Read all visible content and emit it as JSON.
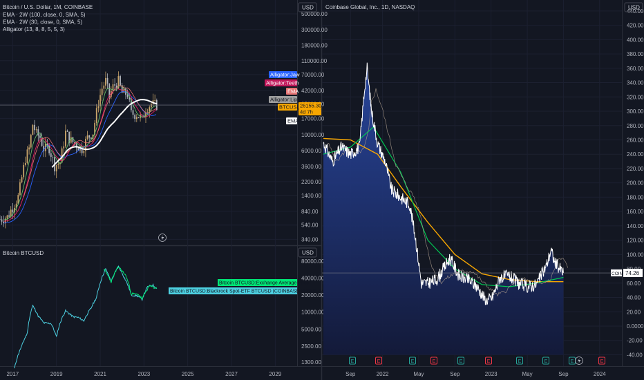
{
  "colors": {
    "bg": "#131722",
    "grid": "#1c2030",
    "axis_text": "#b2b5be",
    "btc_candle_up": "#c8a46a",
    "btc_candle_down": "#b0b4bc",
    "jaw": "#2962ff",
    "teeth": "#e91e63",
    "lips": "#66bb6a",
    "ema": "#ffffff",
    "btc_price": "#f7a600",
    "coin_price": "#ffffff",
    "coin_ema_orange": "#f7a600",
    "coin_ema_green": "#00c853",
    "coin_fill": "#1a2b66",
    "exchange_avg": "#00e676",
    "etf": "#4dd0e1",
    "earnings": "#26a69a",
    "dividend_e": "#f23645"
  },
  "left_top": {
    "title": "Bitcoin / U.S. Dollar, 1M, COINBASE",
    "studies": [
      "EMA · 2W (100, close, 0, SMA, 5)",
      "EMA · 2W (30, close, 0, SMA, 5)",
      "Alligator (13, 8, 8, 5, 5, 3)"
    ],
    "currency": "USD",
    "y_ticks": [
      "500000.00",
      "300000.00",
      "180000.00",
      "110000.00",
      "70000.00",
      "42000.00",
      "27000.00",
      "17000.00",
      "10000.00",
      "6000.00",
      "3600.00",
      "2200.00",
      "1400.00",
      "840.00",
      "540.00",
      "340.00"
    ],
    "labels": {
      "jaw": "Alligator:Jaw",
      "teeth": "Alligator:Teeth",
      "ema1": "EMA",
      "lips": "Alligator:Lips",
      "btc": "BTCUSD",
      "btc_price": "26155.30",
      "btc_sub": "4d 7h",
      "ema2": "EMA"
    }
  },
  "left_bottom": {
    "title": "Bitcoin BTCUSD",
    "currency": "USD",
    "y_ticks": [
      "80000.00",
      "40000.00",
      "20000.00",
      "10000.00",
      "5000.00",
      "2500.00",
      "1300.00"
    ],
    "legend_exchange": "Bitcoin BTCUSD:Exchange Average Price",
    "legend_etf": "Bitcoin BTCUSD:Blackrock Spot-ETF BTCUSD (COINBASE PREMIUM)"
  },
  "left_x_ticks": [
    "2017",
    "2019",
    "2021",
    "2023",
    "2025",
    "2027",
    "2029"
  ],
  "right": {
    "title": "Coinbase Global, Inc., 1D, NASDAQ",
    "currency": "USD",
    "y_ticks": [
      "440.00",
      "420.00",
      "400.00",
      "380.00",
      "360.00",
      "340.00",
      "320.00",
      "300.00",
      "280.00",
      "260.00",
      "240.00",
      "220.00",
      "200.00",
      "180.00",
      "160.00",
      "140.00",
      "120.00",
      "100.00",
      "80.00",
      "60.00",
      "40.00",
      "20.00",
      "0.0000",
      "-20.00",
      "-40.00"
    ],
    "x_ticks": [
      "Sep",
      "2022",
      "May",
      "Sep",
      "2023",
      "May",
      "Sep",
      "2024"
    ],
    "coin_label": "COIN",
    "coin_price": "74.26",
    "events": [
      "E",
      "E",
      "E",
      "E",
      "E",
      "E",
      "E",
      "E",
      "E",
      "E"
    ]
  },
  "chart_data": [
    {
      "type": "candlestick",
      "title": "Bitcoin / U.S. Dollar, 1M, COINBASE",
      "y_scale": "log",
      "ylim": [
        300,
        500000
      ],
      "xlim": [
        "2016-06",
        "2030-01"
      ],
      "current_price": 26155.3,
      "close_series": {
        "dates": [
          "2016-06",
          "2016-10",
          "2017-01",
          "2017-04",
          "2017-06",
          "2017-08",
          "2017-10",
          "2017-12",
          "2018-02",
          "2018-04",
          "2018-06",
          "2018-09",
          "2018-12",
          "2019-03",
          "2019-06",
          "2019-09",
          "2019-12",
          "2020-03",
          "2020-06",
          "2020-09",
          "2020-12",
          "2021-02",
          "2021-04",
          "2021-06",
          "2021-08",
          "2021-11",
          "2022-01",
          "2022-04",
          "2022-06",
          "2022-09",
          "2022-12",
          "2023-02",
          "2023-05",
          "2023-08"
        ],
        "values": [
          650,
          700,
          970,
          1350,
          2500,
          4700,
          6400,
          14000,
          10300,
          9200,
          6400,
          6600,
          3700,
          4100,
          10800,
          8300,
          7200,
          6400,
          9100,
          10800,
          29000,
          45000,
          57000,
          35000,
          47000,
          57000,
          38500,
          37600,
          19900,
          19400,
          16500,
          23100,
          27200,
          26155
        ]
      },
      "alligator_jaw_level_now": 27500,
      "ema_level_now": 27100
    },
    {
      "type": "line",
      "title": "Bitcoin BTCUSD",
      "y_scale": "log",
      "ylim": [
        1100,
        100000
      ],
      "series": [
        {
          "name": "Bitcoin BTCUSD:Exchange Average Price",
          "x": [
            "2017-02",
            "2017-06",
            "2017-09",
            "2017-12",
            "2018-03",
            "2018-06",
            "2018-10",
            "2019-01",
            "2019-06",
            "2019-10",
            "2020-01",
            "2020-04",
            "2020-08",
            "2020-11",
            "2021-01",
            "2021-04",
            "2021-07",
            "2021-11",
            "2022-02",
            "2022-06",
            "2022-09",
            "2022-12",
            "2023-03",
            "2023-06",
            "2023-08"
          ],
          "y": [
            1000,
            2500,
            4200,
            13000,
            8500,
            6400,
            6300,
            3600,
            10500,
            8300,
            8000,
            7000,
            11700,
            18000,
            33000,
            58000,
            34000,
            64000,
            42000,
            20000,
            19500,
            16800,
            28000,
            30000,
            26000
          ]
        },
        {
          "name": "Bitcoin BTCUSD:Blackrock Spot-ETF BTCUSD (COINBASE PREMIUM)",
          "x": [
            "2021-03",
            "2021-07",
            "2021-11",
            "2022-03",
            "2022-06",
            "2022-10",
            "2022-12",
            "2023-04",
            "2023-08"
          ],
          "y": [
            57000,
            34500,
            63000,
            44000,
            21000,
            20500,
            16800,
            29000,
            26200
          ]
        }
      ]
    },
    {
      "type": "area",
      "title": "Coinbase Global, Inc., 1D, NASDAQ",
      "ylim": [
        -40,
        450
      ],
      "xlim": [
        "2021-06-15",
        "2024-03-15"
      ],
      "series": [
        {
          "name": "COIN",
          "x": [
            "2021-06-15",
            "2021-07-15",
            "2021-08-15",
            "2021-09-15",
            "2021-10-15",
            "2021-11-01",
            "2021-11-10",
            "2021-11-25",
            "2021-12-15",
            "2022-01-10",
            "2022-02-01",
            "2022-03-01",
            "2022-04-01",
            "2022-04-20",
            "2022-05-10",
            "2022-06-01",
            "2022-07-01",
            "2022-08-15",
            "2022-09-15",
            "2022-10-15",
            "2022-11-15",
            "2022-12-15",
            "2023-01-05",
            "2023-02-01",
            "2023-03-01",
            "2023-04-01",
            "2023-05-01",
            "2023-06-01",
            "2023-07-05",
            "2023-07-20",
            "2023-08-01",
            "2023-08-20",
            "2023-09-01"
          ],
          "y": [
            256,
            230,
            250,
            240,
            250,
            330,
            360,
            300,
            255,
            230,
            190,
            180,
            170,
            125,
            60,
            60,
            65,
            95,
            70,
            65,
            55,
            35,
            40,
            68,
            70,
            60,
            55,
            58,
            85,
            107,
            90,
            80,
            74.26
          ]
        },
        {
          "name": "EMA slow",
          "x": [
            "2021-06-15",
            "2021-09-15",
            "2021-12-15",
            "2022-03-01",
            "2022-06-01",
            "2022-09-01",
            "2022-12-01",
            "2023-03-01",
            "2023-06-01",
            "2023-09-01"
          ],
          "y": [
            262,
            260,
            240,
            195,
            145,
            100,
            73,
            65,
            62,
            62
          ]
        },
        {
          "name": "EMA fast",
          "x": [
            "2021-06-15",
            "2021-09-15",
            "2021-12-01",
            "2022-03-01",
            "2022-06-01",
            "2022-09-01",
            "2022-12-01",
            "2023-03-01",
            "2023-06-01",
            "2023-09-01"
          ],
          "y": [
            240,
            250,
            278,
            215,
            120,
            80,
            58,
            55,
            60,
            68
          ]
        }
      ]
    }
  ]
}
